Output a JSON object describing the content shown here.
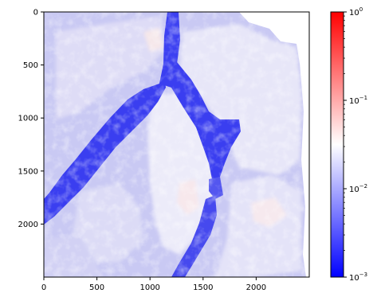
{
  "chart_data": {
    "type": "heatmap",
    "title": "",
    "xlabel": "",
    "ylabel": "",
    "xlim": [
      0,
      2500
    ],
    "ylim": [
      2500,
      0
    ],
    "x_ticks": [
      {
        "value": 0,
        "label": "0"
      },
      {
        "value": 500,
        "label": "500"
      },
      {
        "value": 1000,
        "label": "1000"
      },
      {
        "value": 1500,
        "label": "1500"
      },
      {
        "value": 2000,
        "label": "2000"
      }
    ],
    "y_ticks": [
      {
        "value": 0,
        "label": "0"
      },
      {
        "value": 500,
        "label": "500"
      },
      {
        "value": 1000,
        "label": "1000"
      },
      {
        "value": 1500,
        "label": "1500"
      },
      {
        "value": 2000,
        "label": "2000"
      }
    ],
    "colorbar": {
      "colormap": "bwr",
      "scale": "log",
      "range": [
        0.001,
        1
      ],
      "ticks": [
        {
          "value": 0.001,
          "base": "10",
          "exponent": "−3"
        },
        {
          "value": 0.01,
          "base": "10",
          "exponent": "−2"
        },
        {
          "value": 0.1,
          "base": "10",
          "exponent": "−1"
        },
        {
          "value": 1,
          "base": "10",
          "exponent": "0"
        }
      ],
      "colors": {
        "low": "#0000ff",
        "mid": "#ffffff",
        "high": "#ff0000"
      }
    },
    "colors": {
      "background_mid_blue": "#c8c8f4",
      "channel_blue": "#3a3ef0",
      "light_blue": "#e3e3f8",
      "pale_pink": "#fbe9e9",
      "no_data": "#ffffff"
    }
  }
}
